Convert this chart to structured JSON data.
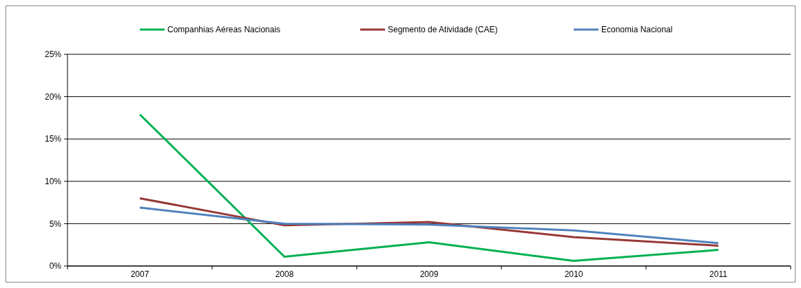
{
  "chart_data": {
    "type": "line",
    "categories": [
      "2007",
      "2008",
      "2009",
      "2010",
      "2011"
    ],
    "series": [
      {
        "name": "Companhias Aéreas Nacionais",
        "color": "#00b050",
        "values": [
          17.9,
          1.1,
          2.8,
          0.6,
          1.9
        ]
      },
      {
        "name": "Segmento de Atividade (CAE)",
        "color": "#953735",
        "values": [
          8.0,
          4.8,
          5.2,
          3.4,
          2.4
        ]
      },
      {
        "name": "Economia Nacional",
        "color": "#4f81bd",
        "values": [
          6.9,
          5.0,
          4.9,
          4.2,
          2.7
        ]
      }
    ],
    "ylim": [
      0,
      25
    ],
    "yticks": [
      {
        "value": 0,
        "label": "0%"
      },
      {
        "value": 5,
        "label": "5%"
      },
      {
        "value": 10,
        "label": "10%"
      },
      {
        "value": 15,
        "label": "15%"
      },
      {
        "value": 20,
        "label": "20%"
      },
      {
        "value": 25,
        "label": "25%"
      }
    ],
    "grid": "y",
    "legend": "top",
    "marker": "none",
    "line_style": "solid"
  }
}
